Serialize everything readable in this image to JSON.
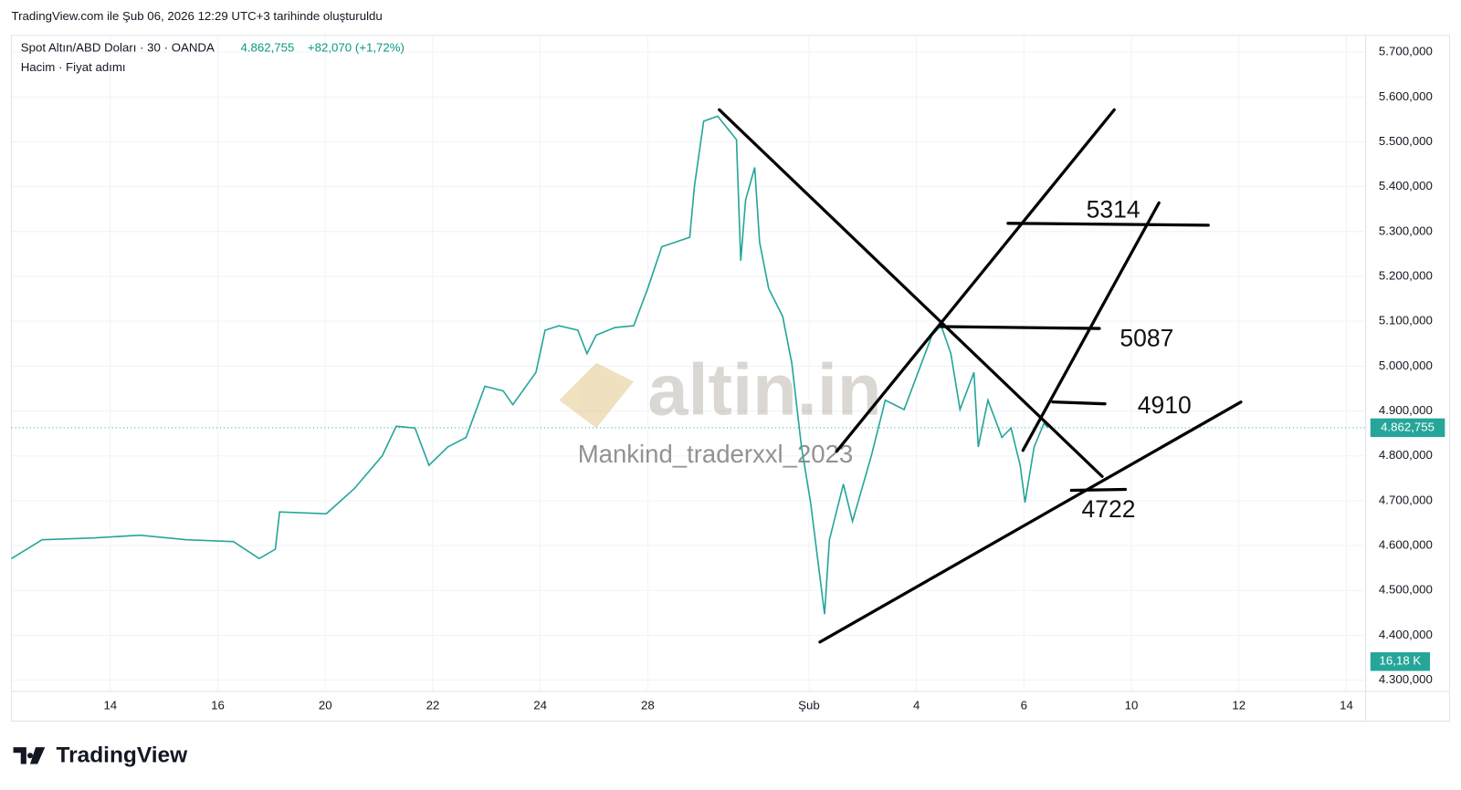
{
  "chart_data": {
    "type": "line",
    "header": "TradingView.com ile Şub 06, 2026 12:29 UTC+3 tarihinde oluşturuldu",
    "title": "Spot Altın/ABD Doları · 30 · OANDA",
    "last_price_label": "4.862,755",
    "change_label": "+82,070 (+1,72%)",
    "subtitle": "Hacim · Fiyat adımı",
    "volume_label": "16,18 K",
    "watermark": "altin.in",
    "watermark_user": "Mankind_traderxxl_2023",
    "brand": "TradingView",
    "annotations": [
      "5314",
      "5087",
      "4910",
      "4722"
    ],
    "grid": true,
    "series": [
      {
        "name": "Spot Altın/ABD Doları",
        "color": "#26a69a",
        "x": [
          -1.84,
          -1.27,
          -0.31,
          0.55,
          1.42,
          2.29,
          2.77,
          3.07,
          3.15,
          4.02,
          4.54,
          5.06,
          5.32,
          5.67,
          5.93,
          6.28,
          6.62,
          6.97,
          7.31,
          7.49,
          7.92,
          8.09,
          8.35,
          8.7,
          8.87,
          9.04,
          9.39,
          9.74,
          10.0,
          10.26,
          10.78,
          10.87,
          11.04,
          11.3,
          11.65,
          11.73,
          11.82,
          11.99,
          12.08,
          12.25,
          12.51,
          12.68,
          12.86,
          13.03,
          13.29,
          13.38,
          13.64,
          13.81,
          14.16,
          14.42,
          14.77,
          15.03,
          15.29,
          15.46,
          15.64,
          15.81,
          16.07,
          16.15,
          16.33,
          16.59,
          16.76,
          16.93,
          17.02,
          17.19,
          17.37,
          17.45
        ],
        "values": [
          4571,
          4613,
          4617,
          4623,
          4613,
          4609,
          4571,
          4592,
          4675,
          4671,
          4727,
          4800,
          4866,
          4862,
          4779,
          4820,
          4841,
          4955,
          4945,
          4914,
          4986,
          5080,
          5090,
          5080,
          5028,
          5069,
          5086,
          5090,
          5173,
          5266,
          5287,
          5401,
          5546,
          5557,
          5505,
          5235,
          5370,
          5443,
          5277,
          5173,
          5111,
          5007,
          4820,
          4696,
          4447,
          4613,
          4737,
          4654,
          4800,
          4924,
          4903,
          4986,
          5069,
          5090,
          5028,
          4903,
          4986,
          4820,
          4924,
          4841,
          4862,
          4779,
          4696,
          4820,
          4872,
          4862.755
        ]
      }
    ],
    "xlim": [
      -1.84,
      23.36
    ],
    "xticks": [
      {
        "value": 0,
        "label": "14"
      },
      {
        "value": 2,
        "label": "16"
      },
      {
        "value": 4,
        "label": "20"
      },
      {
        "value": 6,
        "label": "22"
      },
      {
        "value": 8,
        "label": "24"
      },
      {
        "value": 10,
        "label": "28"
      },
      {
        "value": 13,
        "label": "Şub"
      },
      {
        "value": 15,
        "label": "4"
      },
      {
        "value": 17,
        "label": "6"
      },
      {
        "value": 19,
        "label": "10"
      },
      {
        "value": 21,
        "label": "12"
      },
      {
        "value": 23,
        "label": "14"
      }
    ],
    "ylim": [
      4280,
      5740
    ],
    "yticks": [
      {
        "value": 5700,
        "label": "5.700,000"
      },
      {
        "value": 5600,
        "label": "5.600,000"
      },
      {
        "value": 5500,
        "label": "5.500,000"
      },
      {
        "value": 5400,
        "label": "5.400,000"
      },
      {
        "value": 5300,
        "label": "5.300,000"
      },
      {
        "value": 5200,
        "label": "5.200,000"
      },
      {
        "value": 5100,
        "label": "5.100,000"
      },
      {
        "value": 5000,
        "label": "5.000,000"
      },
      {
        "value": 4900,
        "label": "4.900,000"
      },
      {
        "value": 4800,
        "label": "4.800,000"
      },
      {
        "value": 4700,
        "label": "4.700,000"
      },
      {
        "value": 4600,
        "label": "4.600,000"
      },
      {
        "value": 4500,
        "label": "4.500,000"
      },
      {
        "value": 4400,
        "label": "4.400,000"
      },
      {
        "value": 4300,
        "label": "4.300,000"
      }
    ]
  }
}
